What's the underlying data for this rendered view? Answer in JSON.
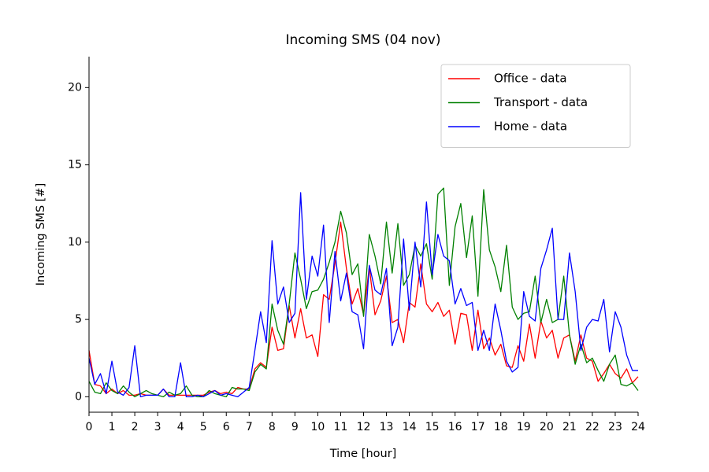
{
  "chart_data": {
    "type": "line",
    "title": "Incoming SMS (04 nov)",
    "x_label": "Time [hour]",
    "y_label": "Incoming SMS [#]",
    "x": [
      0,
      0.25,
      0.5,
      0.75,
      1,
      1.25,
      1.5,
      1.75,
      2,
      2.25,
      2.5,
      2.75,
      3,
      3.25,
      3.5,
      3.75,
      4,
      4.25,
      4.5,
      4.75,
      5,
      5.25,
      5.5,
      5.75,
      6,
      6.25,
      6.5,
      6.75,
      7,
      7.25,
      7.5,
      7.75,
      8,
      8.25,
      8.5,
      8.75,
      9,
      9.25,
      9.5,
      9.75,
      10,
      10.25,
      10.5,
      10.75,
      11,
      11.25,
      11.5,
      11.75,
      12,
      12.25,
      12.5,
      12.75,
      13,
      13.25,
      13.5,
      13.75,
      14,
      14.25,
      14.5,
      14.75,
      15,
      15.25,
      15.5,
      15.75,
      16,
      16.25,
      16.5,
      16.75,
      17,
      17.25,
      17.5,
      17.75,
      18,
      18.25,
      18.5,
      18.75,
      19,
      19.25,
      19.5,
      19.75,
      20,
      20.25,
      20.5,
      20.75,
      21,
      21.25,
      21.5,
      21.75,
      22,
      22.25,
      22.5,
      22.75,
      23,
      23.25,
      23.5,
      23.75,
      24
    ],
    "series": [
      {
        "name": "Office - data",
        "color": "#ff0000",
        "values": [
          3.0,
          0.8,
          0.7,
          0.2,
          0.5,
          0.2,
          0.4,
          0.1,
          0.1,
          0.2,
          0.1,
          0.1,
          0.1,
          0.5,
          0.1,
          0.1,
          0.1,
          0.1,
          0.1,
          0.1,
          0.1,
          0.3,
          0.4,
          0.2,
          0.3,
          0.2,
          0.6,
          0.5,
          0.5,
          1.8,
          2.2,
          1.9,
          4.5,
          3.0,
          3.1,
          5.9,
          3.8,
          5.7,
          3.8,
          4.0,
          2.6,
          6.6,
          6.3,
          8.6,
          11.3,
          8.3,
          6.0,
          7.0,
          5.3,
          8.4,
          5.3,
          6.2,
          7.8,
          4.8,
          5.0,
          3.5,
          6.1,
          5.8,
          8.6,
          6.0,
          5.5,
          6.1,
          5.2,
          5.6,
          3.4,
          5.4,
          5.3,
          3.0,
          5.6,
          3.1,
          3.8,
          2.7,
          3.4,
          2.0,
          1.9,
          3.3,
          2.3,
          4.7,
          2.5,
          4.9,
          3.8,
          4.3,
          2.5,
          3.8,
          4.0,
          2.3,
          4.0,
          2.5,
          2.3,
          1.0,
          1.5,
          2.1,
          1.5,
          1.2,
          1.8,
          0.9,
          1.3
        ]
      },
      {
        "name": "Transport - data",
        "color": "#008000",
        "values": [
          1.0,
          0.3,
          0.2,
          0.9,
          0.4,
          0.2,
          0.7,
          0.3,
          0.0,
          0.2,
          0.4,
          0.2,
          0.1,
          0.0,
          0.3,
          0.1,
          0.2,
          0.7,
          0.1,
          0.0,
          0.0,
          0.4,
          0.2,
          0.1,
          0.0,
          0.6,
          0.5,
          0.5,
          0.4,
          1.6,
          2.1,
          1.8,
          6.0,
          4.3,
          3.4,
          6.0,
          9.3,
          7.6,
          5.7,
          6.8,
          6.9,
          7.6,
          8.7,
          10.0,
          12.0,
          10.6,
          7.9,
          8.6,
          5.2,
          10.5,
          9.1,
          7.3,
          11.3,
          8.0,
          11.2,
          7.2,
          7.9,
          9.8,
          9.1,
          9.9,
          7.6,
          13.1,
          13.5,
          7.2,
          11.0,
          12.5,
          9.0,
          11.7,
          6.5,
          13.4,
          9.5,
          8.4,
          6.8,
          9.8,
          5.8,
          5.0,
          5.4,
          5.5,
          7.8,
          4.8,
          6.3,
          4.8,
          5.0,
          7.8,
          4.0,
          2.1,
          3.4,
          2.2,
          2.5,
          1.7,
          1.0,
          2.1,
          2.7,
          0.8,
          0.7,
          0.9,
          0.4
        ]
      },
      {
        "name": "Home - data",
        "color": "#0000ff",
        "values": [
          2.5,
          0.8,
          1.5,
          0.2,
          2.3,
          0.3,
          0.1,
          0.6,
          3.3,
          0.0,
          0.1,
          0.1,
          0.1,
          0.5,
          0.0,
          0.0,
          2.2,
          0.0,
          0.0,
          0.1,
          0.0,
          0.2,
          0.4,
          0.1,
          0.2,
          0.1,
          0.0,
          0.3,
          0.6,
          3.0,
          5.5,
          3.5,
          10.1,
          6.0,
          7.1,
          4.8,
          5.4,
          13.2,
          6.3,
          9.1,
          7.8,
          11.1,
          4.8,
          9.4,
          6.2,
          8.0,
          5.5,
          5.3,
          3.1,
          8.5,
          6.9,
          6.6,
          8.3,
          3.3,
          4.5,
          10.2,
          5.6,
          10.0,
          7.1,
          12.6,
          7.9,
          10.5,
          9.1,
          8.8,
          6.0,
          7.0,
          5.9,
          6.1,
          3.0,
          4.3,
          3.0,
          6.0,
          4.3,
          2.3,
          1.6,
          1.9,
          6.8,
          5.2,
          4.9,
          8.3,
          9.5,
          10.9,
          5.0,
          5.0,
          9.3,
          6.8,
          3.0,
          4.5,
          5.0,
          4.9,
          6.3,
          2.9,
          5.5,
          4.5,
          2.7,
          1.7,
          1.7
        ]
      }
    ],
    "xlim": [
      0,
      24
    ],
    "ylim": [
      -1,
      22
    ],
    "xticks": [
      0,
      1,
      2,
      3,
      4,
      5,
      6,
      7,
      8,
      9,
      10,
      11,
      12,
      13,
      14,
      15,
      16,
      17,
      18,
      19,
      20,
      21,
      22,
      23,
      24
    ],
    "yticks": [
      0,
      5,
      10,
      15,
      20
    ],
    "legend": "upper right"
  }
}
